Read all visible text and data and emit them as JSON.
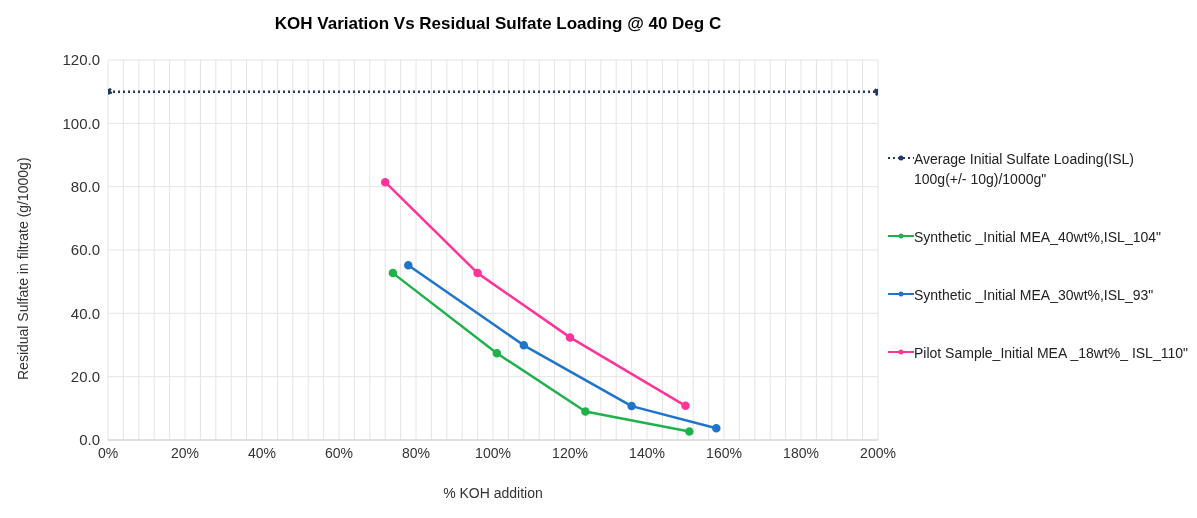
{
  "chart_data": {
    "type": "line",
    "title": "KOH Variation Vs Residual Sulfate Loading @ 40 Deg C",
    "xlabel": "% KOH addition",
    "ylabel": "Residual  Sulfate in filtrate  (g/1000g)",
    "series": [
      {
        "name": "Average Initial Sulfate Loading(ISL) 100g(+/- 10g)/1000g\"",
        "color": "#1f3864",
        "x": [
          0,
          200
        ],
        "values": [
          110,
          110
        ],
        "line_style": "dotted"
      },
      {
        "name": "Synthetic _Initial MEA_40wt%,ISL_104\"",
        "color": "#21b14c",
        "x": [
          74,
          101,
          124,
          151
        ],
        "values": [
          52.7,
          27.4,
          9.0,
          2.7
        ]
      },
      {
        "name": "Synthetic _Initial MEA_30wt%,ISL_93\"",
        "color": "#1f74cc",
        "x": [
          78,
          108,
          136,
          158
        ],
        "values": [
          55.2,
          29.9,
          10.7,
          3.7
        ]
      },
      {
        "name": "Pilot Sample_Initial MEA _18wt%_ ISL_110\"",
        "color": "#ff3399",
        "x": [
          72,
          96,
          120,
          150
        ],
        "values": [
          81.4,
          52.7,
          32.4,
          10.8
        ]
      }
    ],
    "xlim": [
      0,
      200
    ],
    "xticks": [
      {
        "value": 0,
        "label": "0%"
      },
      {
        "value": 4,
        "label": null
      },
      {
        "value": 8,
        "label": null
      },
      {
        "value": 12,
        "label": null
      },
      {
        "value": 16,
        "label": null
      },
      {
        "value": 20,
        "label": "20%"
      },
      {
        "value": 24,
        "label": null
      },
      {
        "value": 28,
        "label": null
      },
      {
        "value": 32,
        "label": null
      },
      {
        "value": 36,
        "label": null
      },
      {
        "value": 40,
        "label": "40%"
      },
      {
        "value": 44,
        "label": null
      },
      {
        "value": 48,
        "label": null
      },
      {
        "value": 52,
        "label": null
      },
      {
        "value": 56,
        "label": null
      },
      {
        "value": 60,
        "label": "60%"
      },
      {
        "value": 64,
        "label": null
      },
      {
        "value": 68,
        "label": null
      },
      {
        "value": 72,
        "label": null
      },
      {
        "value": 76,
        "label": null
      },
      {
        "value": 80,
        "label": "80%"
      },
      {
        "value": 84,
        "label": null
      },
      {
        "value": 88,
        "label": null
      },
      {
        "value": 92,
        "label": null
      },
      {
        "value": 96,
        "label": null
      },
      {
        "value": 100,
        "label": "100%"
      },
      {
        "value": 104,
        "label": null
      },
      {
        "value": 108,
        "label": null
      },
      {
        "value": 112,
        "label": null
      },
      {
        "value": 116,
        "label": null
      },
      {
        "value": 120,
        "label": "120%"
      },
      {
        "value": 124,
        "label": null
      },
      {
        "value": 128,
        "label": null
      },
      {
        "value": 132,
        "label": null
      },
      {
        "value": 136,
        "label": null
      },
      {
        "value": 140,
        "label": "140%"
      },
      {
        "value": 144,
        "label": null
      },
      {
        "value": 148,
        "label": null
      },
      {
        "value": 152,
        "label": null
      },
      {
        "value": 156,
        "label": null
      },
      {
        "value": 160,
        "label": "160%"
      },
      {
        "value": 164,
        "label": null
      },
      {
        "value": 168,
        "label": null
      },
      {
        "value": 172,
        "label": null
      },
      {
        "value": 176,
        "label": null
      },
      {
        "value": 180,
        "label": "180%"
      },
      {
        "value": 184,
        "label": null
      },
      {
        "value": 188,
        "label": null
      },
      {
        "value": 192,
        "label": null
      },
      {
        "value": 196,
        "label": null
      },
      {
        "value": 200,
        "label": "200%"
      }
    ],
    "ylim": [
      0,
      120
    ],
    "yticks": [
      {
        "value": 0,
        "label": "0.0"
      },
      {
        "value": 20,
        "label": "20.0"
      },
      {
        "value": 40,
        "label": "40.0"
      },
      {
        "value": 60,
        "label": "60.0"
      },
      {
        "value": 80,
        "label": "80.0"
      },
      {
        "value": 100,
        "label": "100.0"
      },
      {
        "value": 120,
        "label": "120.0"
      }
    ],
    "grid": true,
    "legend": "right",
    "marker": "circle",
    "line_style": "solid"
  }
}
